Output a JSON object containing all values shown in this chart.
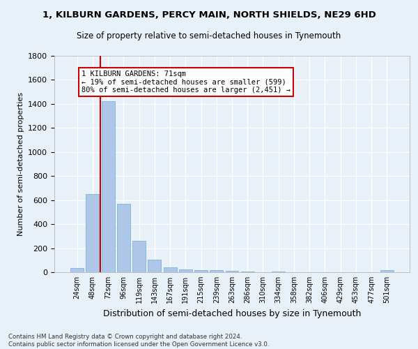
{
  "title1": "1, KILBURN GARDENS, PERCY MAIN, NORTH SHIELDS, NE29 6HD",
  "title2": "Size of property relative to semi-detached houses in Tynemouth",
  "xlabel": "Distribution of semi-detached houses by size in Tynemouth",
  "ylabel": "Number of semi-detached properties",
  "footer": "Contains HM Land Registry data © Crown copyright and database right 2024.\nContains public sector information licensed under the Open Government Licence v3.0.",
  "bar_labels": [
    "24sqm",
    "48sqm",
    "72sqm",
    "96sqm",
    "119sqm",
    "143sqm",
    "167sqm",
    "191sqm",
    "215sqm",
    "239sqm",
    "263sqm",
    "286sqm",
    "310sqm",
    "334sqm",
    "358sqm",
    "382sqm",
    "406sqm",
    "429sqm",
    "453sqm",
    "477sqm",
    "501sqm"
  ],
  "bar_values": [
    35,
    648,
    1420,
    570,
    262,
    105,
    40,
    25,
    20,
    18,
    10,
    8,
    0,
    7,
    0,
    0,
    0,
    0,
    0,
    0,
    20
  ],
  "bar_color": "#aec6e8",
  "bar_edge_color": "#6aaed6",
  "background_color": "#e8f0f8",
  "grid_color": "#ffffff",
  "annotation_text": "1 KILBURN GARDENS: 71sqm\n← 19% of semi-detached houses are smaller (599)\n80% of semi-detached houses are larger (2,451) →",
  "annotation_box_color": "#ffffff",
  "annotation_box_edge": "#cc0000",
  "vline_color": "#cc0000",
  "ylim": [
    0,
    1800
  ],
  "yticks": [
    0,
    200,
    400,
    600,
    800,
    1000,
    1200,
    1400,
    1600,
    1800
  ]
}
